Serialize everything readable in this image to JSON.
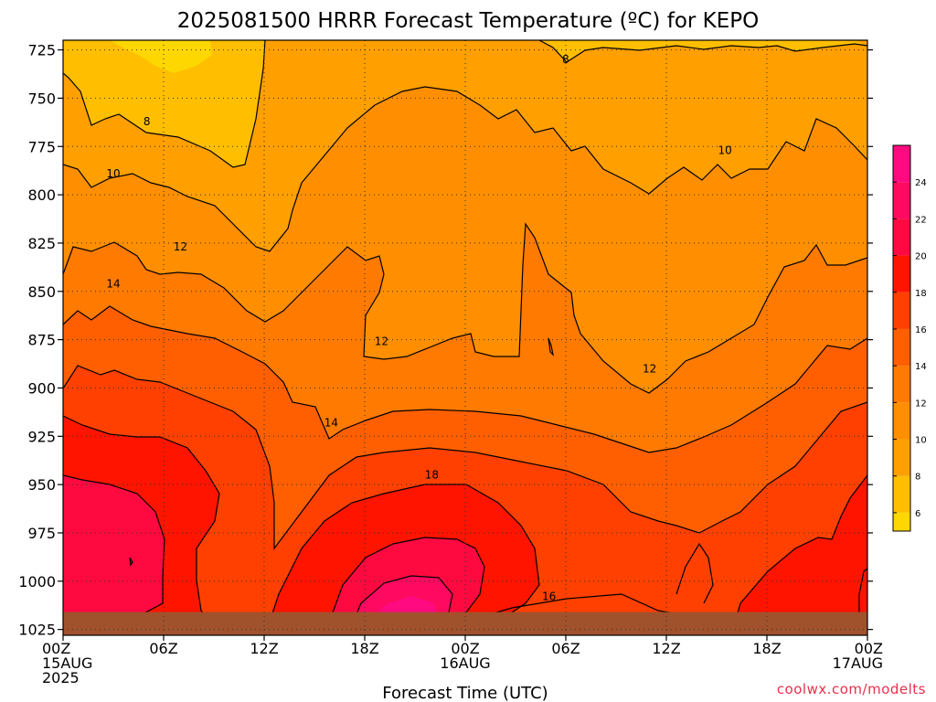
{
  "chart_data": {
    "type": "heatmap",
    "title": "2025081500 HRRR Forecast Temperature (ºC) for KEPO",
    "xlabel": "Forecast Time (UTC)",
    "ylabel": "",
    "credit": "coolwx.com/modelts",
    "x_range_hours": [
      0,
      48
    ],
    "y_range_hpa": [
      720,
      1028
    ],
    "y_scale": "pressure",
    "grid": true,
    "y_ticks": [
      725,
      750,
      775,
      800,
      825,
      850,
      875,
      900,
      925,
      950,
      975,
      1000,
      1025
    ],
    "x_ticks": [
      {
        "hour": 0,
        "lines": [
          "00Z",
          "15AUG",
          "2025"
        ]
      },
      {
        "hour": 6,
        "lines": [
          "06Z"
        ]
      },
      {
        "hour": 12,
        "lines": [
          "12Z"
        ]
      },
      {
        "hour": 18,
        "lines": [
          "18Z"
        ]
      },
      {
        "hour": 24,
        "lines": [
          "00Z",
          "16AUG"
        ]
      },
      {
        "hour": 30,
        "lines": [
          "06Z"
        ]
      },
      {
        "hour": 36,
        "lines": [
          "12Z"
        ]
      },
      {
        "hour": 42,
        "lines": [
          "18Z"
        ]
      },
      {
        "hour": 48,
        "lines": [
          "00Z",
          "17AUG"
        ]
      }
    ],
    "colorbar": {
      "levels": [
        6,
        8,
        10,
        12,
        14,
        16,
        18,
        20,
        22,
        24
      ],
      "colors": [
        "#ffd700",
        "#ffbf00",
        "#ff9f00",
        "#ff8f00",
        "#ff7a00",
        "#ff5f00",
        "#ff4000",
        "#ff1400",
        "#ff0a40",
        "#ff0a60",
        "#ff0a80"
      ],
      "range": [
        5,
        26
      ]
    },
    "surface_pressure_hpa": 1016,
    "contour_labels": [
      {
        "value": "8",
        "hour": 30.0,
        "p": 730
      },
      {
        "value": "8",
        "hour": 5.0,
        "p": 762
      },
      {
        "value": "10",
        "hour": 3.0,
        "p": 789
      },
      {
        "value": "10",
        "hour": 39.5,
        "p": 777
      },
      {
        "value": "12",
        "hour": 7.0,
        "p": 827
      },
      {
        "value": "12",
        "hour": 19.0,
        "p": 876
      },
      {
        "value": "12",
        "hour": 35.0,
        "p": 890
      },
      {
        "value": "14",
        "hour": 3.0,
        "p": 846
      },
      {
        "value": "14",
        "hour": 16.0,
        "p": 918
      },
      {
        "value": "16",
        "hour": 29.0,
        "p": 1008
      },
      {
        "value": "18",
        "hour": 22.0,
        "p": 945
      }
    ]
  }
}
